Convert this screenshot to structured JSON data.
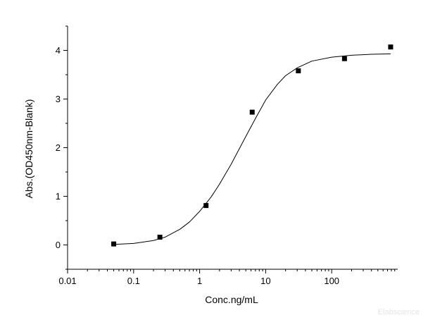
{
  "chart_data": {
    "type": "scatter",
    "title": "",
    "xlabel": "Conc.ng/mL",
    "ylabel": "Abs.(OD450nm-Blank)",
    "x_scale": "log",
    "xlim": [
      0.01,
      1000
    ],
    "ylim": [
      -0.5,
      4.5
    ],
    "x_ticks": [
      0.01,
      0.1,
      1,
      10,
      100
    ],
    "x_tick_labels": [
      "0.01",
      "0.1",
      "1",
      "10",
      "100"
    ],
    "y_ticks": [
      0,
      1,
      2,
      3,
      4
    ],
    "y_tick_labels": [
      "0",
      "1",
      "2",
      "3",
      "4"
    ],
    "grid": false,
    "legend": "none",
    "series": [
      {
        "type": "scatter",
        "marker": "square",
        "x": [
          0.05,
          0.25,
          1.25,
          6.25,
          31.25,
          156.25,
          781.25
        ],
        "y": [
          0.02,
          0.16,
          0.81,
          2.73,
          3.58,
          3.83,
          4.07
        ]
      },
      {
        "type": "line",
        "x": [
          0.05,
          0.1,
          0.2,
          0.3,
          0.5,
          0.7,
          1,
          1.5,
          2,
          3,
          4,
          5,
          7,
          10,
          15,
          20,
          30,
          50,
          100,
          200,
          400,
          781.25
        ],
        "y": [
          0.01,
          0.03,
          0.09,
          0.16,
          0.32,
          0.47,
          0.69,
          0.99,
          1.25,
          1.66,
          1.98,
          2.23,
          2.6,
          2.98,
          3.3,
          3.48,
          3.64,
          3.78,
          3.86,
          3.9,
          3.92,
          3.93
        ]
      }
    ],
    "colors": {
      "marker": "#000000",
      "line": "#000000",
      "axis": "#000000"
    }
  },
  "watermark": "Elabscience"
}
